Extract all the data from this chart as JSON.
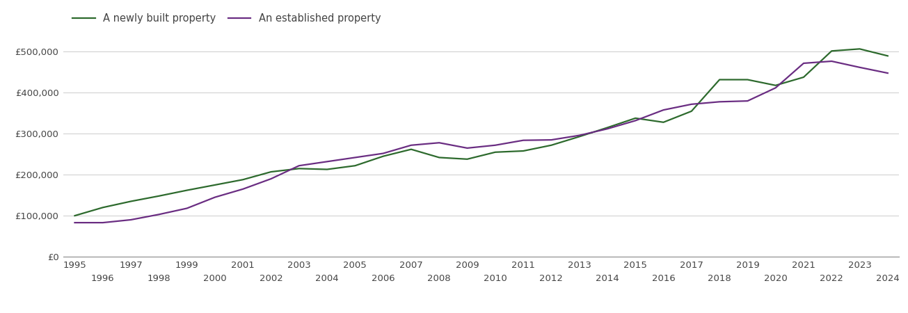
{
  "newly_built": {
    "years": [
      1995,
      1996,
      1997,
      1998,
      1999,
      2000,
      2001,
      2002,
      2003,
      2004,
      2005,
      2006,
      2007,
      2008,
      2009,
      2010,
      2011,
      2012,
      2013,
      2014,
      2015,
      2016,
      2017,
      2018,
      2019,
      2020,
      2021,
      2022,
      2023,
      2024
    ],
    "values": [
      100000,
      120000,
      135000,
      148000,
      162000,
      175000,
      188000,
      207000,
      215000,
      213000,
      222000,
      245000,
      262000,
      242000,
      238000,
      255000,
      258000,
      272000,
      293000,
      315000,
      338000,
      328000,
      355000,
      432000,
      432000,
      418000,
      438000,
      502000,
      507000,
      490000
    ]
  },
  "established": {
    "years": [
      1995,
      1996,
      1997,
      1998,
      1999,
      2000,
      2001,
      2002,
      2003,
      2004,
      2005,
      2006,
      2007,
      2008,
      2009,
      2010,
      2011,
      2012,
      2013,
      2014,
      2015,
      2016,
      2017,
      2018,
      2019,
      2020,
      2021,
      2022,
      2023,
      2024
    ],
    "values": [
      83000,
      83000,
      90000,
      103000,
      118000,
      145000,
      165000,
      190000,
      222000,
      232000,
      242000,
      252000,
      272000,
      278000,
      265000,
      272000,
      284000,
      285000,
      296000,
      312000,
      332000,
      358000,
      372000,
      378000,
      380000,
      412000,
      472000,
      477000,
      462000,
      448000
    ]
  },
  "newly_built_color": "#2d6a2d",
  "established_color": "#6a2d82",
  "newly_built_label": "A newly built property",
  "established_label": "An established property",
  "ylim": [
    0,
    550000
  ],
  "yticks": [
    0,
    100000,
    200000,
    300000,
    400000,
    500000
  ],
  "ytick_labels": [
    "£0",
    "£100,000",
    "£200,000",
    "£300,000",
    "£400,000",
    "£500,000"
  ],
  "xlim": [
    1994.6,
    2024.4
  ],
  "background_color": "#ffffff",
  "grid_color": "#cccccc",
  "line_width": 1.6,
  "legend_fontsize": 10.5,
  "tick_fontsize": 9.5,
  "tick_color": "#444444"
}
